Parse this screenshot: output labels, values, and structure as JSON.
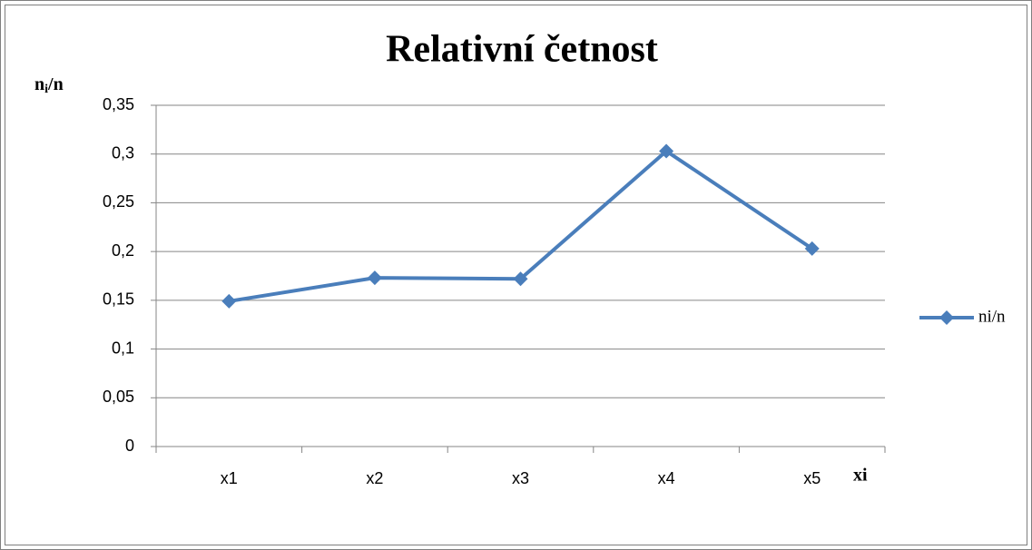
{
  "chart_data": {
    "type": "line",
    "title": "Relativní četnost",
    "ylabel": [
      "n",
      "i",
      "/n"
    ],
    "xlabel": "xi",
    "categories": [
      "x1",
      "x2",
      "x3",
      "x4",
      "x5"
    ],
    "series": [
      {
        "name": "ni/n",
        "color": "#4a7ebb",
        "values": [
          0.149,
          0.173,
          0.172,
          0.303,
          0.203
        ]
      }
    ],
    "ylim": [
      0,
      0.35
    ],
    "yticks": [
      0,
      {
        "value": 0.05,
        "label": "0,05"
      },
      {
        "value": 0.1,
        "label": "0,1"
      },
      {
        "value": 0.15,
        "label": "0,15"
      },
      {
        "value": 0.2,
        "label": "0,2"
      },
      {
        "value": 0.25,
        "label": "0,25"
      },
      {
        "value": 0.3,
        "label": "0,3"
      },
      {
        "value": 0.35,
        "label": "0,35"
      }
    ],
    "grid": true,
    "legend": "right"
  }
}
